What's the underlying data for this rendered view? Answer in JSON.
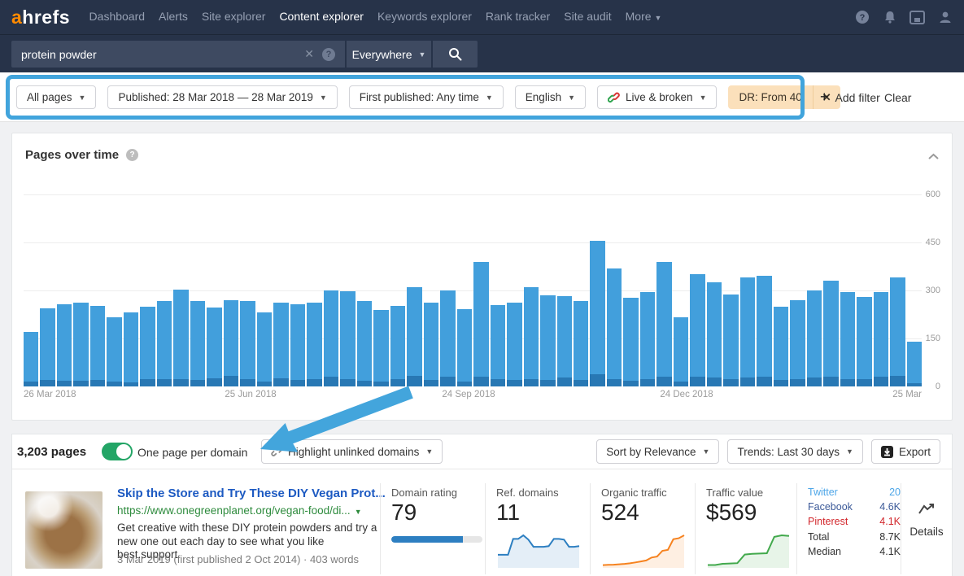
{
  "colors": {
    "nav_bg": "#273349",
    "accent_highlight": "#41A4DC",
    "bar_blue": "#429FDC",
    "bar_dark": "#2878B4",
    "toggle_green": "#23A566",
    "chip_bg": "#FBE0BB",
    "title_link": "#1D5AC2",
    "url_green": "#2E8B3D",
    "spark_blue": "#2D7FC1",
    "spark_orange": "#F6821F",
    "spark_green": "#42A94C",
    "twitter": "#4DA6E8",
    "facebook": "#3B5998",
    "pinterest": "#D2262B",
    "logo_orange": "#FF8A00"
  },
  "nav": {
    "logo_a": "a",
    "logo_rest": "hrefs",
    "items": [
      {
        "label": "Dashboard"
      },
      {
        "label": "Alerts"
      },
      {
        "label": "Site explorer"
      },
      {
        "label": "Content explorer"
      },
      {
        "label": "Keywords explorer"
      },
      {
        "label": "Rank tracker"
      },
      {
        "label": "Site audit"
      },
      {
        "label": "More"
      }
    ],
    "icons": [
      "help-icon",
      "bell-icon",
      "changelog-icon",
      "account-icon"
    ]
  },
  "search": {
    "query": "protein powder",
    "scope": "Everywhere"
  },
  "filters": {
    "dropdowns": [
      {
        "label": "All pages"
      },
      {
        "label": "Published: 28 Mar 2018 — 28 Mar 2019"
      },
      {
        "label": "First published: Any time"
      },
      {
        "label": "English"
      },
      {
        "label": "Live & broken"
      }
    ],
    "active_chip": {
      "label": "DR: From 40",
      "close": "✕"
    },
    "add_filter": "Add filter",
    "clear": "Clear"
  },
  "chart_card": {
    "title": "Pages over time"
  },
  "chart_data": [
    {
      "type": "bar",
      "stacked": true,
      "title": "Pages over time",
      "xlabel": "",
      "ylabel": "",
      "ylim": [
        0,
        600
      ],
      "y_ticks": [
        600,
        450,
        300,
        150,
        0
      ],
      "x_ticks": [
        "26 Mar 2018",
        "25 Jun 2018",
        "24 Sep 2018",
        "24 Dec 2018",
        "25 Mar"
      ],
      "grid": true,
      "legend": "none",
      "totals": [
        170,
        245,
        256,
        262,
        252,
        216,
        232,
        250,
        268,
        302,
        268,
        246,
        270,
        266,
        232,
        262,
        256,
        262,
        300,
        298,
        268,
        240,
        252,
        310,
        262,
        300,
        242,
        388,
        254,
        262,
        310,
        284,
        282,
        268,
        455,
        368,
        276,
        295,
        390,
        215,
        350,
        325,
        288,
        340,
        345,
        248,
        270,
        300,
        330,
        296,
        280,
        296,
        340,
        140
      ],
      "broken": [
        14,
        20,
        18,
        18,
        20,
        15,
        12,
        22,
        24,
        24,
        20,
        26,
        34,
        22,
        14,
        26,
        20,
        24,
        30,
        24,
        18,
        14,
        22,
        34,
        20,
        30,
        14,
        30,
        22,
        20,
        24,
        20,
        28,
        20,
        38,
        24,
        18,
        24,
        30,
        14,
        30,
        28,
        22,
        28,
        30,
        20,
        24,
        28,
        30,
        24,
        22,
        30,
        34,
        10
      ]
    },
    {
      "type": "line",
      "title": "Ref. domains trend",
      "values": [
        3.2,
        3.2,
        3.2,
        7.6,
        7.6,
        8.6,
        7.4,
        5.4,
        5.4,
        5.4,
        5.6,
        7.6,
        7.6,
        7.4,
        5.4,
        5.4,
        5.6
      ]
    },
    {
      "type": "line",
      "title": "Organic traffic trend",
      "values": [
        0.6,
        0.7,
        0.8,
        1.0,
        1.2,
        1.5,
        2.0,
        2.5,
        3.0,
        4.5,
        5.0,
        8.0,
        8.5,
        14.0,
        14.5,
        16.0
      ]
    },
    {
      "type": "line",
      "title": "Traffic value trend",
      "values": [
        0.4,
        0.4,
        0.8,
        0.9,
        1.0,
        3.8,
        4.0,
        4.1,
        4.2,
        9.5,
        10.0,
        9.8
      ]
    }
  ],
  "toolbar": {
    "count": "3,203 pages",
    "toggle_label": "One page per domain",
    "highlight_label": "Highlight unlinked domains",
    "sort_label": "Sort by Relevance",
    "trends_label": "Trends: Last 30 days",
    "export_label": "Export"
  },
  "result": {
    "title": "Skip the Store and Try These DIY Vegan Prot...",
    "url": "https://www.onegreenplanet.org/vegan-food/di...",
    "description": "Get creative with these DIY protein powders and try a new one out each day to see what you like best.support",
    "date_line": "3 Mar 2019 (first published 2 Oct 2014) · 403 words",
    "metrics": [
      {
        "label": "Domain rating",
        "value": "79",
        "bar_pct": 79
      },
      {
        "label": "Ref. domains",
        "value": "11"
      },
      {
        "label": "Organic traffic",
        "value": "524"
      },
      {
        "label": "Traffic value",
        "value": "$569"
      }
    ],
    "social": [
      {
        "label": "Twitter",
        "value": "20"
      },
      {
        "label": "Facebook",
        "value": "4.6K"
      },
      {
        "label": "Pinterest",
        "value": "4.1K"
      },
      {
        "label": "Total",
        "value": "8.7K"
      },
      {
        "label": "Median",
        "value": "4.1K"
      }
    ],
    "details_label": "Details"
  }
}
